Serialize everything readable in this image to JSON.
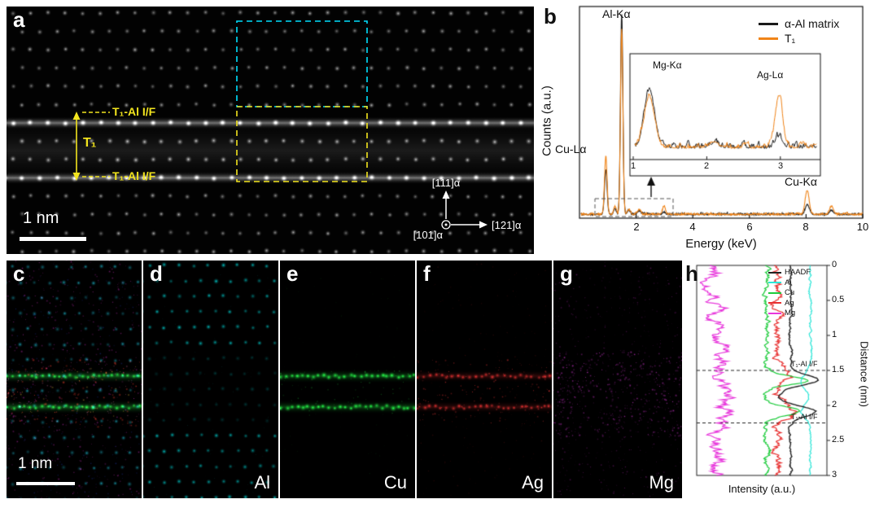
{
  "panels": {
    "a": {
      "label": "a",
      "scale_bar": "1 nm",
      "t1": "T₁",
      "interface_top": "T₁-Al I/F",
      "interface_bottom": "T₁-Al I/F",
      "axis_vertical": "[111]α",
      "axis_inplane": "[121]α",
      "axis_zone": "[101]α"
    },
    "b": {
      "label": "b",
      "ylabel": "Counts (a.u.)",
      "xlabel": "Energy (keV)",
      "legend": [
        "α-Al matrix",
        "T₁"
      ],
      "x_ticks": [
        "2",
        "4",
        "6",
        "8",
        "10"
      ],
      "inset_x_ticks": [
        "1",
        "2",
        "3"
      ],
      "peaks": {
        "al_k": "Al-Kα",
        "cu_l": "Cu-Lα",
        "cu_k": "Cu-Kα",
        "mg_k": "Mg-Kα",
        "ag_l": "Ag-Lα"
      }
    },
    "c": {
      "label": "c",
      "scale_bar": "1 nm"
    },
    "d": {
      "label": "d",
      "element": "Al"
    },
    "e": {
      "label": "e",
      "element": "Cu"
    },
    "f": {
      "label": "f",
      "element": "Ag"
    },
    "g": {
      "label": "g",
      "element": "Mg"
    },
    "h": {
      "label": "h",
      "right_axis_label": "Distance (nm)",
      "bottom_axis_label": "Intensity (a.u.)",
      "ticks": [
        "0",
        "0.5",
        "1",
        "1.5",
        "2",
        "2.5",
        "3"
      ],
      "interface_top": "T₁-Al I/F",
      "interface_bottom": "T₁-Al I/F",
      "legend": [
        "HAADF",
        "Al",
        "Cu",
        "Ag",
        "Mg"
      ]
    }
  },
  "colors": {
    "cyan_roi": "#00e0ff",
    "yellow_annotation": "#f2e41e",
    "matrix_spectrum": "#1a1a1a",
    "t1_spectrum": "#f08418",
    "al_map": "#00d8d8",
    "cu_map": "#1ee23c",
    "ag_map": "#e83030",
    "mg_map": "#e030e0"
  },
  "chart_data": [
    {
      "type": "line",
      "panel": "b",
      "title": "EDS point spectra of α-Al matrix and T₁ plate",
      "xlabel": "Energy (keV)",
      "ylabel": "Counts (a.u.)",
      "xlim": [
        0,
        10
      ],
      "x_ticks": [
        2,
        4,
        6,
        8,
        10
      ],
      "legend_position": "top-right",
      "series": [
        {
          "name": "α-Al matrix",
          "color": "#1a1a1a",
          "peaks_keV_width_amp": [
            [
              0.93,
              0.045,
              0.22
            ],
            [
              1.25,
              0.04,
              0.03
            ],
            [
              1.49,
              0.042,
              1.0
            ],
            [
              1.74,
              0.05,
              0.02
            ],
            [
              2.1,
              0.06,
              0.018
            ],
            [
              2.98,
              0.05,
              0.012
            ],
            [
              8.04,
              0.07,
              0.05
            ],
            [
              8.9,
              0.07,
              0.02
            ]
          ],
          "inset_peaks": [
            [
              1.22,
              0.07,
              0.62
            ],
            [
              2.1,
              0.06,
              0.05
            ],
            [
              2.98,
              0.05,
              0.12
            ]
          ]
        },
        {
          "name": "T₁",
          "color": "#f08418",
          "peaks_keV_width_amp": [
            [
              0.93,
              0.045,
              0.29
            ],
            [
              1.25,
              0.04,
              0.04
            ],
            [
              1.49,
              0.042,
              0.92
            ],
            [
              1.74,
              0.05,
              0.025
            ],
            [
              2.1,
              0.06,
              0.022
            ],
            [
              2.98,
              0.05,
              0.04
            ],
            [
              8.04,
              0.07,
              0.12
            ],
            [
              8.9,
              0.07,
              0.04
            ]
          ],
          "inset_peaks": [
            [
              1.22,
              0.07,
              0.54
            ],
            [
              2.1,
              0.06,
              0.06
            ],
            [
              2.98,
              0.05,
              0.55
            ]
          ]
        }
      ],
      "inset": {
        "xlim": [
          1,
          3.5
        ],
        "x_ticks": [
          1,
          2,
          3
        ],
        "labels": [
          "Mg-Kα",
          "Ag-Lα"
        ]
      }
    },
    {
      "type": "line",
      "panel": "h",
      "title": "Intensity line profiles across T₁ plate",
      "xlabel": "Intensity (a.u.)",
      "ylabel": "Distance (nm)",
      "ylim": [
        0,
        3
      ],
      "y_ticks": [
        0,
        0.5,
        1,
        1.5,
        2,
        2.5,
        3
      ],
      "interfaces_nm": [
        1.5,
        2.25
      ],
      "series": [
        {
          "name": "HAADF",
          "color": "#222222",
          "base": 0.74,
          "noise": 0.016,
          "peaks_nm_width_amp": [
            [
              1.64,
              0.07,
              0.24
            ],
            [
              2.08,
              0.07,
              0.22
            ],
            [
              1.86,
              0.12,
              -0.1
            ]
          ]
        },
        {
          "name": "Al",
          "color": "#2ee6d8",
          "base": 0.9,
          "noise": 0.013,
          "peaks_nm_width_amp": [
            [
              1.64,
              0.1,
              -0.07
            ],
            [
              2.08,
              0.1,
              -0.07
            ]
          ]
        },
        {
          "name": "Cu",
          "color": "#1ecc3c",
          "base": 0.55,
          "noise": 0.03,
          "peaks_nm_width_amp": [
            [
              1.64,
              0.06,
              0.3
            ],
            [
              2.08,
              0.06,
              0.27
            ]
          ]
        },
        {
          "name": "Ag",
          "color": "#e83030",
          "base": 0.63,
          "noise": 0.05,
          "peaks_nm_width_amp": [
            [
              1.56,
              0.1,
              0.14
            ],
            [
              2.12,
              0.1,
              0.13
            ]
          ]
        },
        {
          "name": "Mg",
          "color": "#e838dc",
          "base": 0.13,
          "noise": 0.1,
          "peaks_nm_width_amp": [
            [
              1.86,
              0.45,
              0.07
            ]
          ]
        }
      ]
    }
  ]
}
